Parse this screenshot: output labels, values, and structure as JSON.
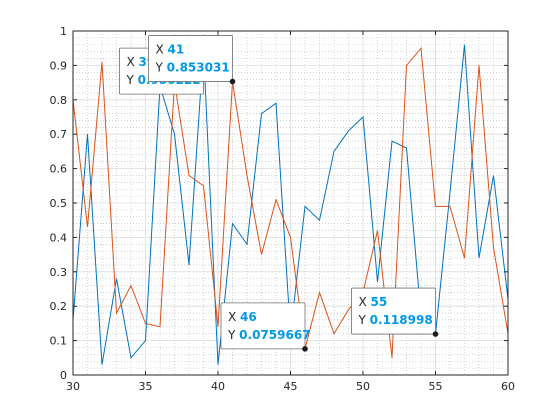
{
  "chart_data": {
    "type": "line",
    "xlim": [
      30,
      60
    ],
    "ylim": [
      0,
      1
    ],
    "x_ticks": [
      "30",
      "35",
      "40",
      "45",
      "50",
      "55",
      "60"
    ],
    "y_ticks": [
      "0",
      "0.1",
      "0.2",
      "0.3",
      "0.4",
      "0.5",
      "0.6",
      "0.7",
      "0.8",
      "0.9",
      "1"
    ],
    "grid": "major solid, minor dotted",
    "x": [
      30,
      31,
      32,
      33,
      34,
      35,
      36,
      37,
      38,
      39,
      40,
      41,
      42,
      43,
      44,
      45,
      46,
      47,
      48,
      49,
      50,
      51,
      52,
      53,
      54,
      55,
      56,
      57,
      58,
      59,
      60
    ],
    "series": [
      {
        "color": "#0072BD",
        "values": [
          0.16,
          0.7,
          0.03,
          0.28,
          0.05,
          0.1,
          0.84,
          0.7,
          0.32,
          0.950222,
          0.03,
          0.44,
          0.38,
          0.76,
          0.79,
          0.12,
          0.49,
          0.45,
          0.65,
          0.71,
          0.75,
          0.27,
          0.68,
          0.66,
          0.17,
          0.118998,
          0.53,
          0.96,
          0.34,
          0.58,
          0.22
        ]
      },
      {
        "color": "#D95319",
        "values": [
          0.8,
          0.43,
          0.91,
          0.18,
          0.26,
          0.15,
          0.14,
          0.85,
          0.58,
          0.55,
          0.14,
          0.853031,
          0.58,
          0.35,
          0.51,
          0.4,
          0.0759667,
          0.24,
          0.12,
          0.19,
          0.24,
          0.42,
          0.05,
          0.9,
          0.95,
          0.49,
          0.49,
          0.34,
          0.9,
          0.37,
          0.12
        ]
      }
    ],
    "datatips": [
      {
        "x_label": "X",
        "y_label": "Y",
        "x": "39",
        "y": "0.950222",
        "xv": 39,
        "yv": 0.950222
      },
      {
        "x_label": "X",
        "y_label": "Y",
        "x": "41",
        "y": "0.853031",
        "xv": 41,
        "yv": 0.853031
      },
      {
        "x_label": "X",
        "y_label": "Y",
        "x": "46",
        "y": "0.0759667",
        "xv": 46,
        "yv": 0.0759667
      },
      {
        "x_label": "X",
        "y_label": "Y",
        "x": "55",
        "y": "0.118998",
        "xv": 55,
        "yv": 0.118998
      }
    ]
  }
}
